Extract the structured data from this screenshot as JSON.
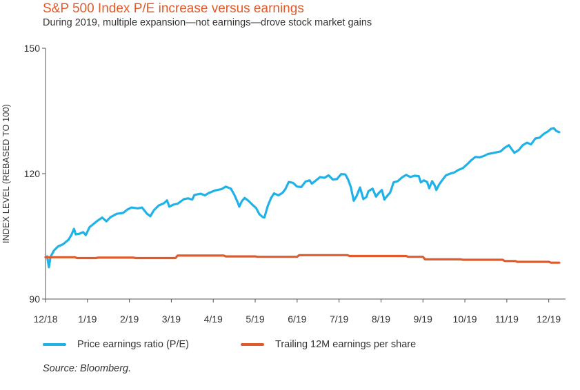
{
  "chart_data": {
    "type": "line",
    "title": "S&P 500 Index P/E increase versus earnings",
    "subtitle": "During 2019, multiple expansion—not earnings—drove stock market gains",
    "xlabel": "",
    "ylabel": "INDEX LEVEL (REBASED TO 100)",
    "ylim": [
      90,
      150
    ],
    "yticks": [
      "150",
      "120",
      "90"
    ],
    "ytick_values": [
      150,
      120,
      90
    ],
    "xlim": [
      0,
      12.4
    ],
    "xticks": [
      "12/18",
      "1/19",
      "2/19",
      "3/19",
      "4/19",
      "5/19",
      "6/19",
      "7/19",
      "8/19",
      "9/19",
      "10/19",
      "11/19",
      "12/19"
    ],
    "xtick_positions": [
      0,
      1,
      2,
      3,
      4,
      5,
      6,
      7,
      8,
      9,
      10,
      11,
      12
    ],
    "grid": false,
    "legend_position": "bottom-left",
    "series": [
      {
        "name": "Price earnings ratio (P/E)",
        "color": "#1fb2e8",
        "points": [
          [
            0.0,
            100.0
          ],
          [
            0.04,
            100.2
          ],
          [
            0.08,
            97.6
          ],
          [
            0.12,
            100.1
          ],
          [
            0.2,
            101.6
          ],
          [
            0.3,
            102.6
          ],
          [
            0.42,
            103.1
          ],
          [
            0.55,
            104.2
          ],
          [
            0.62,
            105.4
          ],
          [
            0.68,
            106.8
          ],
          [
            0.72,
            105.5
          ],
          [
            0.8,
            105.6
          ],
          [
            0.9,
            106.0
          ],
          [
            0.96,
            105.3
          ],
          [
            1.05,
            107.2
          ],
          [
            1.15,
            108.0
          ],
          [
            1.25,
            108.8
          ],
          [
            1.35,
            109.5
          ],
          [
            1.45,
            108.6
          ],
          [
            1.55,
            109.6
          ],
          [
            1.7,
            110.4
          ],
          [
            1.85,
            110.6
          ],
          [
            1.95,
            111.4
          ],
          [
            2.05,
            111.9
          ],
          [
            2.2,
            111.7
          ],
          [
            2.3,
            111.9
          ],
          [
            2.42,
            110.4
          ],
          [
            2.5,
            109.8
          ],
          [
            2.58,
            111.2
          ],
          [
            2.7,
            112.4
          ],
          [
            2.82,
            112.9
          ],
          [
            2.9,
            113.6
          ],
          [
            2.95,
            112.1
          ],
          [
            3.05,
            112.6
          ],
          [
            3.15,
            112.8
          ],
          [
            3.3,
            113.9
          ],
          [
            3.4,
            114.1
          ],
          [
            3.5,
            113.8
          ],
          [
            3.55,
            114.9
          ],
          [
            3.7,
            115.2
          ],
          [
            3.8,
            114.8
          ],
          [
            3.9,
            115.4
          ],
          [
            4.05,
            116.0
          ],
          [
            4.2,
            116.3
          ],
          [
            4.3,
            116.9
          ],
          [
            4.42,
            116.4
          ],
          [
            4.5,
            115.0
          ],
          [
            4.58,
            113.2
          ],
          [
            4.62,
            112.1
          ],
          [
            4.68,
            113.4
          ],
          [
            4.75,
            114.2
          ],
          [
            4.85,
            113.4
          ],
          [
            4.95,
            112.4
          ],
          [
            5.02,
            111.8
          ],
          [
            5.1,
            110.3
          ],
          [
            5.18,
            109.6
          ],
          [
            5.22,
            109.5
          ],
          [
            5.3,
            112.3
          ],
          [
            5.38,
            114.2
          ],
          [
            5.45,
            115.3
          ],
          [
            5.55,
            114.8
          ],
          [
            5.65,
            115.4
          ],
          [
            5.72,
            116.3
          ],
          [
            5.8,
            118.0
          ],
          [
            5.9,
            117.8
          ],
          [
            6.0,
            116.9
          ],
          [
            6.1,
            116.8
          ],
          [
            6.2,
            118.1
          ],
          [
            6.3,
            118.4
          ],
          [
            6.35,
            117.6
          ],
          [
            6.45,
            118.4
          ],
          [
            6.55,
            119.2
          ],
          [
            6.65,
            119.0
          ],
          [
            6.75,
            119.6
          ],
          [
            6.85,
            118.6
          ],
          [
            6.95,
            118.7
          ],
          [
            7.05,
            119.9
          ],
          [
            7.15,
            119.8
          ],
          [
            7.22,
            118.5
          ],
          [
            7.28,
            116.8
          ],
          [
            7.35,
            113.5
          ],
          [
            7.42,
            114.7
          ],
          [
            7.5,
            116.7
          ],
          [
            7.58,
            113.9
          ],
          [
            7.65,
            114.4
          ],
          [
            7.7,
            115.8
          ],
          [
            7.8,
            116.4
          ],
          [
            7.88,
            114.5
          ],
          [
            7.95,
            115.4
          ],
          [
            8.02,
            116.1
          ],
          [
            8.08,
            113.8
          ],
          [
            8.15,
            114.7
          ],
          [
            8.22,
            115.5
          ],
          [
            8.3,
            117.9
          ],
          [
            8.4,
            118.2
          ],
          [
            8.5,
            119.1
          ],
          [
            8.6,
            119.7
          ],
          [
            8.7,
            119.2
          ],
          [
            8.8,
            119.5
          ],
          [
            8.9,
            119.4
          ],
          [
            8.95,
            117.9
          ],
          [
            9.02,
            118.4
          ],
          [
            9.1,
            118.0
          ],
          [
            9.15,
            116.5
          ],
          [
            9.22,
            118.2
          ],
          [
            9.28,
            117.2
          ],
          [
            9.32,
            116.1
          ],
          [
            9.38,
            117.3
          ],
          [
            9.45,
            118.3
          ],
          [
            9.55,
            119.6
          ],
          [
            9.65,
            120.0
          ],
          [
            9.75,
            120.3
          ],
          [
            9.85,
            120.9
          ],
          [
            9.95,
            121.3
          ],
          [
            10.05,
            122.2
          ],
          [
            10.15,
            123.2
          ],
          [
            10.25,
            124.0
          ],
          [
            10.35,
            123.9
          ],
          [
            10.45,
            124.2
          ],
          [
            10.55,
            124.7
          ],
          [
            10.65,
            124.9
          ],
          [
            10.75,
            125.1
          ],
          [
            10.85,
            125.3
          ],
          [
            10.95,
            126.2
          ],
          [
            11.05,
            126.8
          ],
          [
            11.12,
            125.8
          ],
          [
            11.18,
            125.0
          ],
          [
            11.28,
            125.6
          ],
          [
            11.38,
            126.8
          ],
          [
            11.48,
            127.4
          ],
          [
            11.58,
            127.0
          ],
          [
            11.68,
            128.4
          ],
          [
            11.78,
            128.6
          ],
          [
            11.88,
            129.5
          ],
          [
            11.98,
            130.1
          ],
          [
            12.05,
            130.7
          ],
          [
            12.12,
            130.9
          ],
          [
            12.18,
            130.2
          ],
          [
            12.25,
            129.9
          ]
        ]
      },
      {
        "name": "Trailing 12M earnings per share",
        "color": "#e05a2a",
        "points": [
          [
            0.0,
            100.0
          ],
          [
            0.7,
            100.0
          ],
          [
            0.75,
            99.8
          ],
          [
            1.2,
            99.8
          ],
          [
            1.25,
            99.9
          ],
          [
            2.1,
            99.9
          ],
          [
            2.15,
            99.8
          ],
          [
            3.1,
            99.8
          ],
          [
            3.15,
            100.4
          ],
          [
            4.25,
            100.4
          ],
          [
            4.3,
            100.2
          ],
          [
            5.0,
            100.2
          ],
          [
            5.05,
            100.1
          ],
          [
            6.0,
            100.1
          ],
          [
            6.05,
            100.5
          ],
          [
            7.2,
            100.5
          ],
          [
            7.25,
            100.3
          ],
          [
            8.6,
            100.3
          ],
          [
            8.65,
            100.1
          ],
          [
            9.0,
            100.1
          ],
          [
            9.05,
            99.5
          ],
          [
            9.9,
            99.5
          ],
          [
            9.95,
            99.4
          ],
          [
            10.9,
            99.4
          ],
          [
            10.95,
            99.1
          ],
          [
            11.2,
            99.1
          ],
          [
            11.25,
            98.9
          ],
          [
            12.0,
            98.9
          ],
          [
            12.05,
            98.7
          ],
          [
            12.25,
            98.7
          ]
        ]
      }
    ]
  },
  "source": "Source: Bloomberg."
}
